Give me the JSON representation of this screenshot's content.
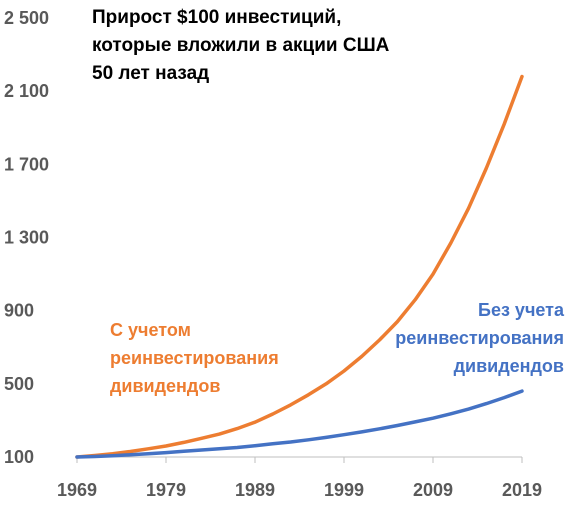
{
  "chart_data": {
    "type": "line",
    "title_lines": [
      "Прирост $100 инвестиций,",
      "которые вложили в акции США",
      "50 лет назад"
    ],
    "xlabel": "",
    "ylabel": "",
    "xlim": [
      1969,
      2019
    ],
    "ylim": [
      100,
      2500
    ],
    "x_ticks": [
      "1969",
      "1979",
      "1989",
      "1999",
      "2009",
      "2019"
    ],
    "y_ticks": [
      "100",
      "500",
      "900",
      "1 300",
      "1 700",
      "2 100",
      "2 500"
    ],
    "grid": false,
    "legend": "none",
    "series": [
      {
        "label_lines": [
          "С учетом",
          "реинвестирования",
          "дивидендов"
        ],
        "color": "#ED7D31",
        "x": [
          1969,
          1971,
          1973,
          1975,
          1977,
          1979,
          1981,
          1983,
          1985,
          1987,
          1989,
          1991,
          1993,
          1995,
          1997,
          1999,
          2001,
          2003,
          2005,
          2007,
          2009,
          2011,
          2013,
          2015,
          2017,
          2019
        ],
        "values": [
          100,
          108,
          118,
          130,
          145,
          160,
          180,
          202,
          225,
          255,
          290,
          335,
          385,
          440,
          500,
          570,
          650,
          740,
          840,
          960,
          1100,
          1270,
          1460,
          1680,
          1920,
          2180
        ]
      },
      {
        "label_lines": [
          "Без учета",
          "реинвестирования",
          "дивидендов"
        ],
        "color": "#4472C4",
        "x": [
          1969,
          1971,
          1973,
          1975,
          1977,
          1979,
          1981,
          1983,
          1985,
          1987,
          1989,
          1991,
          1993,
          1995,
          1997,
          1999,
          2001,
          2003,
          2005,
          2007,
          2009,
          2011,
          2013,
          2015,
          2017,
          2019
        ],
        "values": [
          100,
          103,
          107,
          112,
          118,
          124,
          131,
          138,
          145,
          152,
          162,
          172,
          182,
          194,
          207,
          222,
          237,
          254,
          272,
          292,
          312,
          336,
          362,
          392,
          425,
          460
        ]
      }
    ]
  }
}
